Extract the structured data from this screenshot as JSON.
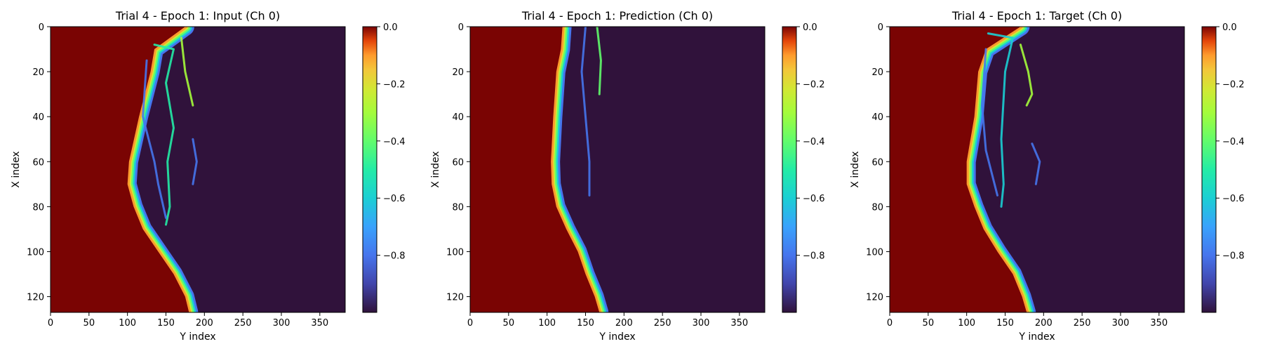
{
  "colormap": "turbo",
  "colors": {
    "cold": "#30123b",
    "hot": "#7a0403",
    "frame": "#000000"
  },
  "chart_data": [
    {
      "type": "heatmap",
      "title": "Trial 4 - Epoch 1: Input (Ch 0)",
      "xlabel": "Y index",
      "ylabel": "X index",
      "xlim": [
        0,
        383
      ],
      "ylim": [
        127,
        0
      ],
      "xticks": [
        0,
        50,
        100,
        150,
        200,
        250,
        300,
        350
      ],
      "yticks": [
        0,
        20,
        40,
        60,
        80,
        100,
        120
      ],
      "colorbar": {
        "vmin": -1.0,
        "vmax": 0.0,
        "ticks": [
          0.0,
          -0.2,
          -0.4,
          -0.6,
          -0.8
        ]
      },
      "front_y_by_x": [
        [
          0,
          175
        ],
        [
          10,
          135
        ],
        [
          20,
          130
        ],
        [
          40,
          115
        ],
        [
          60,
          102
        ],
        [
          70,
          100
        ],
        [
          80,
          108
        ],
        [
          90,
          120
        ],
        [
          100,
          140
        ],
        [
          110,
          160
        ],
        [
          120,
          175
        ],
        [
          127,
          180
        ]
      ],
      "filaments": [
        {
          "path": [
            [
              8,
              135
            ],
            [
              10,
              160
            ],
            [
              25,
              150
            ],
            [
              45,
              160
            ],
            [
              60,
              152
            ],
            [
              80,
              155
            ],
            [
              88,
              150
            ]
          ],
          "value": -0.55
        },
        {
          "path": [
            [
              15,
              125
            ],
            [
              40,
              120
            ],
            [
              60,
              135
            ],
            [
              70,
              140
            ],
            [
              85,
              150
            ]
          ],
          "value": -0.85
        },
        {
          "path": [
            [
              5,
              170
            ],
            [
              20,
              175
            ],
            [
              35,
              185
            ]
          ],
          "value": -0.3
        },
        {
          "path": [
            [
              50,
              185
            ],
            [
              60,
              190
            ],
            [
              70,
              185
            ]
          ],
          "value": -0.85
        }
      ]
    },
    {
      "type": "heatmap",
      "title": "Trial 4 - Epoch 1: Prediction (Ch 0)",
      "xlabel": "Y index",
      "ylabel": "X index",
      "xlim": [
        0,
        383
      ],
      "ylim": [
        127,
        0
      ],
      "xticks": [
        0,
        50,
        100,
        150,
        200,
        250,
        300,
        350
      ],
      "yticks": [
        0,
        20,
        40,
        60,
        80,
        100,
        120
      ],
      "colorbar": {
        "vmin": -1.0,
        "vmax": 0.0,
        "ticks": [
          0.0,
          -0.2,
          -0.4,
          -0.6,
          -0.8
        ]
      },
      "front_y_by_x": [
        [
          0,
          120
        ],
        [
          10,
          118
        ],
        [
          20,
          112
        ],
        [
          40,
          108
        ],
        [
          60,
          105
        ],
        [
          70,
          106
        ],
        [
          80,
          112
        ],
        [
          90,
          125
        ],
        [
          100,
          140
        ],
        [
          110,
          150
        ],
        [
          120,
          162
        ],
        [
          127,
          168
        ]
      ],
      "filaments": [
        {
          "path": [
            [
              0,
              150
            ],
            [
              20,
              145
            ],
            [
              40,
              150
            ],
            [
              60,
              155
            ],
            [
              75,
              155
            ]
          ],
          "value": -0.85
        },
        {
          "path": [
            [
              0,
              165
            ],
            [
              15,
              170
            ],
            [
              30,
              168
            ]
          ],
          "value": -0.45
        }
      ]
    },
    {
      "type": "heatmap",
      "title": "Trial 4 - Epoch 1: Target (Ch 0)",
      "xlabel": "Y index",
      "ylabel": "X index",
      "xlim": [
        0,
        383
      ],
      "ylim": [
        127,
        0
      ],
      "xticks": [
        0,
        50,
        100,
        150,
        200,
        250,
        300,
        350
      ],
      "yticks": [
        0,
        20,
        40,
        60,
        80,
        100,
        120
      ],
      "colorbar": {
        "vmin": -1.0,
        "vmax": 0.0,
        "ticks": [
          0.0,
          -0.2,
          -0.4,
          -0.6,
          -0.8
        ]
      },
      "front_y_by_x": [
        [
          0,
          170
        ],
        [
          10,
          125
        ],
        [
          20,
          115
        ],
        [
          40,
          110
        ],
        [
          60,
          100
        ],
        [
          70,
          100
        ],
        [
          80,
          110
        ],
        [
          90,
          122
        ],
        [
          100,
          140
        ],
        [
          110,
          160
        ],
        [
          120,
          172
        ],
        [
          127,
          178
        ]
      ],
      "filaments": [
        {
          "path": [
            [
              3,
              128
            ],
            [
              5,
              160
            ],
            [
              20,
              150
            ],
            [
              50,
              145
            ],
            [
              70,
              148
            ],
            [
              80,
              145
            ]
          ],
          "value": -0.6
        },
        {
          "path": [
            [
              10,
              125
            ],
            [
              35,
              120
            ],
            [
              55,
              125
            ],
            [
              75,
              140
            ]
          ],
          "value": -0.85
        },
        {
          "path": [
            [
              8,
              170
            ],
            [
              20,
              180
            ],
            [
              30,
              185
            ],
            [
              35,
              178
            ]
          ],
          "value": -0.3
        },
        {
          "path": [
            [
              52,
              185
            ],
            [
              60,
              195
            ],
            [
              70,
              190
            ]
          ],
          "value": -0.85
        }
      ]
    }
  ]
}
